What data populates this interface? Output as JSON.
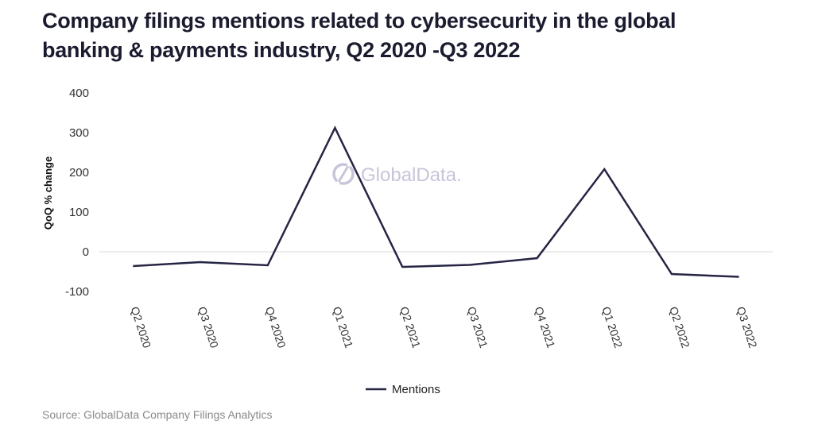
{
  "title": "Company filings mentions related to cybersecurity in the global banking & payments industry, Q2 2020 -Q3 2022",
  "source": "Source: GlobalData Company Filings Analytics",
  "watermark": "GlobalData.",
  "colors": {
    "line": "#262545",
    "gridline": "#d9d9d9",
    "watermark": "#c9c4d8"
  },
  "chart_data": {
    "type": "line",
    "title": "Company filings mentions related to cybersecurity in the global banking & payments industry, Q2 2020 -Q3 2022",
    "xlabel": "",
    "ylabel": "QoQ % change",
    "ylim": [
      -100,
      400
    ],
    "yticks": [
      400,
      300,
      200,
      100,
      0,
      -100
    ],
    "ytick_labels": [
      "400",
      "300",
      "200",
      "100",
      "0",
      "-100"
    ],
    "grid": "zero-line only",
    "legend_position": "bottom-center",
    "categories": [
      "Q2 2020",
      "Q3 2020",
      "Q4 2020",
      "Q1 2021",
      "Q2 2021",
      "Q3 2021",
      "Q4 2021",
      "Q1 2022",
      "Q2 2022",
      "Q3 2022"
    ],
    "series": [
      {
        "name": "Mentions",
        "values": [
          -36,
          -26,
          -34,
          312,
          -38,
          -33,
          -16,
          208,
          -56,
          -63
        ]
      }
    ]
  }
}
